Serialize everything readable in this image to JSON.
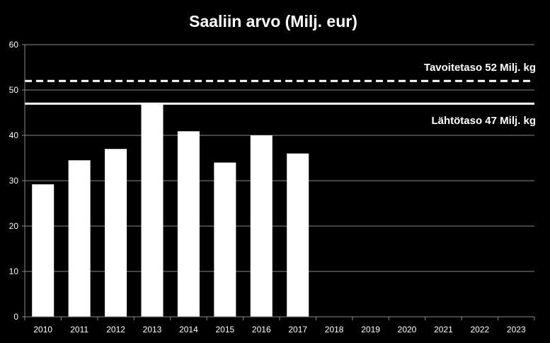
{
  "chart_data": {
    "type": "bar",
    "title": "Saaliin arvo (Milj. eur)",
    "xlabel": "",
    "ylabel": "",
    "categories": [
      "2010",
      "2011",
      "2012",
      "2013",
      "2014",
      "2015",
      "2016",
      "2017",
      "2018",
      "2019",
      "2020",
      "2021",
      "2022",
      "2023"
    ],
    "values": [
      29.2,
      34.5,
      37,
      47.2,
      40.9,
      34,
      40,
      36,
      null,
      null,
      null,
      null,
      null,
      null
    ],
    "ylim": [
      0,
      60
    ],
    "yticks": [
      0,
      10,
      20,
      30,
      40,
      50,
      60
    ],
    "grid": true,
    "reference_lines": [
      {
        "value": 52,
        "label": "Tavoitetaso 52 Milj. kg",
        "style": "dashed"
      },
      {
        "value": 47,
        "label": "Lähtötaso 47 Milj. kg",
        "style": "solid"
      }
    ],
    "colors": {
      "background": "#000000",
      "bars": "#ffffff",
      "grid": "#8a8a8a",
      "text": "#ffffff"
    }
  }
}
